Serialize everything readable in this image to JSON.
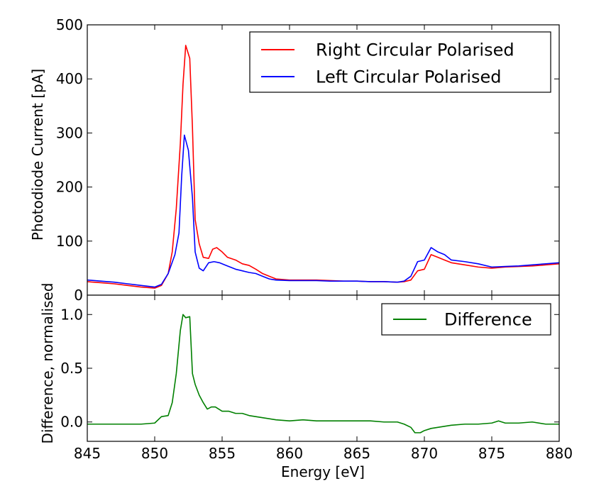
{
  "chart_data": [
    {
      "type": "line",
      "panel": "top",
      "ylabel": "Photodiode Current [pA]",
      "xlim": [
        845,
        880
      ],
      "ylim": [
        0,
        500
      ],
      "yticks": [
        0,
        100,
        200,
        300,
        400,
        500
      ],
      "ytick_labels": [
        "0",
        "100",
        "200",
        "300",
        "400",
        "500"
      ],
      "legend_position": "top-right",
      "series": [
        {
          "name": "Right Circular Polarised",
          "color": "#ff0000",
          "points": [
            [
              845,
              25
            ],
            [
              846,
              23
            ],
            [
              847,
              21
            ],
            [
              848,
              18
            ],
            [
              849,
              15
            ],
            [
              850,
              13
            ],
            [
              850.5,
              18
            ],
            [
              851,
              40
            ],
            [
              851.3,
              80
            ],
            [
              851.6,
              160
            ],
            [
              851.9,
              280
            ],
            [
              852.1,
              390
            ],
            [
              852.3,
              462
            ],
            [
              852.6,
              438
            ],
            [
              852.8,
              310
            ],
            [
              853,
              140
            ],
            [
              853.3,
              95
            ],
            [
              853.6,
              70
            ],
            [
              854,
              68
            ],
            [
              854.3,
              85
            ],
            [
              854.6,
              88
            ],
            [
              855,
              80
            ],
            [
              855.4,
              70
            ],
            [
              856,
              65
            ],
            [
              856.5,
              58
            ],
            [
              857,
              55
            ],
            [
              857.5,
              48
            ],
            [
              858,
              40
            ],
            [
              858.5,
              35
            ],
            [
              859,
              30
            ],
            [
              860,
              28
            ],
            [
              861,
              28
            ],
            [
              862,
              28
            ],
            [
              863,
              27
            ],
            [
              864,
              26
            ],
            [
              865,
              26
            ],
            [
              866,
              25
            ],
            [
              867,
              25
            ],
            [
              868,
              24
            ],
            [
              868.5,
              25
            ],
            [
              869,
              28
            ],
            [
              869.5,
              45
            ],
            [
              870,
              48
            ],
            [
              870.5,
              75
            ],
            [
              871,
              70
            ],
            [
              871.5,
              65
            ],
            [
              872,
              60
            ],
            [
              873,
              56
            ],
            [
              874,
              52
            ],
            [
              875,
              50
            ],
            [
              876,
              52
            ],
            [
              877,
              53
            ],
            [
              878,
              54
            ],
            [
              879,
              56
            ],
            [
              880,
              58
            ]
          ]
        },
        {
          "name": "Left Circular Polarised",
          "color": "#0000ff",
          "points": [
            [
              845,
              28
            ],
            [
              846,
              26
            ],
            [
              847,
              24
            ],
            [
              848,
              21
            ],
            [
              849,
              18
            ],
            [
              850,
              15
            ],
            [
              850.5,
              20
            ],
            [
              851,
              40
            ],
            [
              851.5,
              75
            ],
            [
              851.8,
              115
            ],
            [
              852,
              220
            ],
            [
              852.2,
              296
            ],
            [
              852.5,
              268
            ],
            [
              852.8,
              180
            ],
            [
              853,
              80
            ],
            [
              853.3,
              50
            ],
            [
              853.6,
              45
            ],
            [
              854,
              60
            ],
            [
              854.4,
              62
            ],
            [
              854.8,
              60
            ],
            [
              855.3,
              55
            ],
            [
              856,
              48
            ],
            [
              856.5,
              45
            ],
            [
              857,
              42
            ],
            [
              857.5,
              40
            ],
            [
              858,
              35
            ],
            [
              858.5,
              30
            ],
            [
              859,
              28
            ],
            [
              860,
              27
            ],
            [
              861,
              27
            ],
            [
              862,
              27
            ],
            [
              863,
              26
            ],
            [
              864,
              26
            ],
            [
              865,
              26
            ],
            [
              866,
              25
            ],
            [
              867,
              25
            ],
            [
              868,
              24
            ],
            [
              868.5,
              26
            ],
            [
              869,
              35
            ],
            [
              869.5,
              62
            ],
            [
              870,
              65
            ],
            [
              870.5,
              88
            ],
            [
              871,
              80
            ],
            [
              871.5,
              75
            ],
            [
              872,
              65
            ],
            [
              873,
              62
            ],
            [
              874,
              58
            ],
            [
              875,
              52
            ],
            [
              876,
              53
            ],
            [
              877,
              54
            ],
            [
              878,
              56
            ],
            [
              879,
              58
            ],
            [
              880,
              60
            ]
          ]
        }
      ]
    },
    {
      "type": "line",
      "panel": "bottom",
      "title": "",
      "xlabel": "Energy [eV]",
      "ylabel": "Difference, normalised",
      "xlim": [
        845,
        880
      ],
      "ylim": [
        -0.18,
        1.18
      ],
      "xticks": [
        845,
        850,
        855,
        860,
        865,
        870,
        875,
        880
      ],
      "xtick_labels": [
        "845",
        "850",
        "855",
        "860",
        "865",
        "870",
        "875",
        "880"
      ],
      "yticks": [
        0.0,
        0.5,
        1.0
      ],
      "ytick_labels": [
        "0.0",
        "0.5",
        "1.0"
      ],
      "legend_position": "top-right",
      "series": [
        {
          "name": "Difference",
          "color": "#008000",
          "points": [
            [
              845,
              -0.02
            ],
            [
              846,
              -0.02
            ],
            [
              847,
              -0.02
            ],
            [
              848,
              -0.02
            ],
            [
              849,
              -0.02
            ],
            [
              850,
              -0.01
            ],
            [
              850.5,
              0.05
            ],
            [
              851,
              0.06
            ],
            [
              851.3,
              0.18
            ],
            [
              851.6,
              0.45
            ],
            [
              851.9,
              0.85
            ],
            [
              852.1,
              1.0
            ],
            [
              852.3,
              0.97
            ],
            [
              852.6,
              0.98
            ],
            [
              852.8,
              0.45
            ],
            [
              853,
              0.35
            ],
            [
              853.3,
              0.25
            ],
            [
              853.6,
              0.18
            ],
            [
              853.9,
              0.12
            ],
            [
              854.2,
              0.14
            ],
            [
              854.5,
              0.14
            ],
            [
              855,
              0.1
            ],
            [
              855.5,
              0.1
            ],
            [
              856,
              0.08
            ],
            [
              856.5,
              0.08
            ],
            [
              857,
              0.06
            ],
            [
              857.5,
              0.05
            ],
            [
              858,
              0.04
            ],
            [
              859,
              0.02
            ],
            [
              860,
              0.01
            ],
            [
              861,
              0.02
            ],
            [
              862,
              0.01
            ],
            [
              863,
              0.01
            ],
            [
              864,
              0.01
            ],
            [
              865,
              0.01
            ],
            [
              866,
              0.01
            ],
            [
              867,
              0.0
            ],
            [
              868,
              0.0
            ],
            [
              868.5,
              -0.02
            ],
            [
              869,
              -0.05
            ],
            [
              869.3,
              -0.1
            ],
            [
              869.7,
              -0.1
            ],
            [
              870,
              -0.08
            ],
            [
              870.5,
              -0.06
            ],
            [
              871,
              -0.05
            ],
            [
              872,
              -0.03
            ],
            [
              873,
              -0.02
            ],
            [
              874,
              -0.02
            ],
            [
              875,
              -0.01
            ],
            [
              875.5,
              0.01
            ],
            [
              876,
              -0.01
            ],
            [
              877,
              -0.01
            ],
            [
              878,
              0.0
            ],
            [
              879,
              -0.02
            ],
            [
              880,
              -0.02
            ]
          ]
        }
      ]
    }
  ]
}
